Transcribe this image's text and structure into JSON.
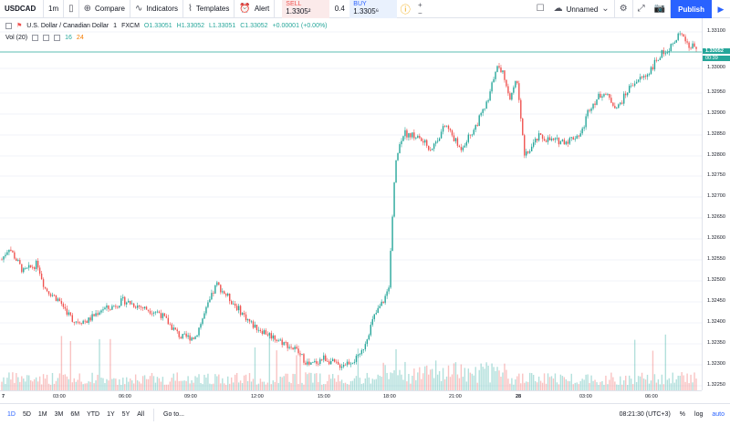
{
  "toolbar": {
    "symbol": "USDCAD",
    "interval": "1m",
    "compare": "Compare",
    "indicators": "Indicators",
    "templates": "Templates",
    "alert": "Alert",
    "sell_label": "SELL",
    "sell_price": "1.3305²",
    "spread": "0.4",
    "buy_label": "BUY",
    "buy_price": "1.3305⁶",
    "layout_name": "Unnamed",
    "publish": "Publish",
    "qty_plus": "+",
    "qty_minus": "−"
  },
  "legend": {
    "title": "U.S. Dollar / Canadian Dollar",
    "interval": "1",
    "source": "FXCM",
    "open": "O1.33051",
    "high": "H1.33052",
    "low": "L1.33051",
    "close": "C1.33052",
    "change": "+0.00001 (+0.00%)"
  },
  "volume": {
    "label": "Vol (20)",
    "v1": "16",
    "v2": "24"
  },
  "price_axis": {
    "ticks": [
      "1.33100",
      "1.33000",
      "1.32950",
      "1.32900",
      "1.32850",
      "1.32800",
      "1.32750",
      "1.32700",
      "1.32650",
      "1.32600",
      "1.32550",
      "1.32500",
      "1.32450",
      "1.32400",
      "1.32350",
      "1.32300",
      "1.32250"
    ],
    "current": "1.33052",
    "countdown": "00:39"
  },
  "time_axis": {
    "ticks": [
      "7",
      "03:00",
      "06:00",
      "09:00",
      "12:00",
      "15:00",
      "18:00",
      "21:00",
      "28",
      "03:00",
      "06:00"
    ]
  },
  "bottom": {
    "ranges": [
      "1D",
      "5D",
      "1M",
      "3M",
      "6M",
      "YTD",
      "1Y",
      "5Y",
      "All"
    ],
    "goto": "Go to...",
    "clock": "08:21:30 (UTC+3)",
    "percent": "%",
    "log": "log",
    "auto": "auto"
  },
  "colors": {
    "up": "#26a69a",
    "down": "#ef5350",
    "accent": "#2962ff"
  },
  "chart_data": {
    "type": "candlestick",
    "symbol": "USDCAD",
    "title": "U.S. Dollar / Canadian Dollar",
    "ylim": [
      1.3221,
      1.3312
    ],
    "path": [
      [
        0,
        1.3253
      ],
      [
        1,
        1.3256
      ],
      [
        3,
        1.325
      ],
      [
        5,
        1.3252
      ],
      [
        6,
        1.3246
      ],
      [
        8,
        1.3243
      ],
      [
        10,
        1.3238
      ],
      [
        12,
        1.3238
      ],
      [
        14,
        1.3241
      ],
      [
        15,
        1.3241
      ],
      [
        17,
        1.3243
      ],
      [
        20,
        1.3241
      ],
      [
        22,
        1.324
      ],
      [
        25,
        1.3234
      ],
      [
        27,
        1.3234
      ],
      [
        30,
        1.3247
      ],
      [
        32,
        1.3243
      ],
      [
        35,
        1.3237
      ],
      [
        38,
        1.3234
      ],
      [
        41,
        1.3231
      ],
      [
        43,
        1.3227
      ],
      [
        45,
        1.3229
      ],
      [
        47,
        1.3227
      ],
      [
        50,
        1.3229
      ],
      [
        52,
        1.3239
      ],
      [
        54,
        1.3245
      ],
      [
        55,
        1.3277
      ],
      [
        56,
        1.3284
      ],
      [
        58,
        1.3283
      ],
      [
        60,
        1.328
      ],
      [
        62,
        1.3286
      ],
      [
        64,
        1.328
      ],
      [
        66,
        1.3285
      ],
      [
        68,
        1.3292
      ],
      [
        69,
        1.33
      ],
      [
        70,
        1.3299
      ],
      [
        71,
        1.3292
      ],
      [
        72,
        1.3297
      ],
      [
        73,
        1.3278
      ],
      [
        75,
        1.3283
      ],
      [
        77,
        1.3282
      ],
      [
        79,
        1.3282
      ],
      [
        81,
        1.3284
      ],
      [
        82,
        1.329
      ],
      [
        84,
        1.3294
      ],
      [
        86,
        1.329
      ],
      [
        87,
        1.3293
      ],
      [
        88,
        1.3296
      ],
      [
        90,
        1.3298
      ],
      [
        92,
        1.3303
      ],
      [
        94,
        1.3306
      ],
      [
        95,
        1.3309
      ],
      [
        96,
        1.3305
      ],
      [
        97,
        1.3305
      ]
    ]
  }
}
